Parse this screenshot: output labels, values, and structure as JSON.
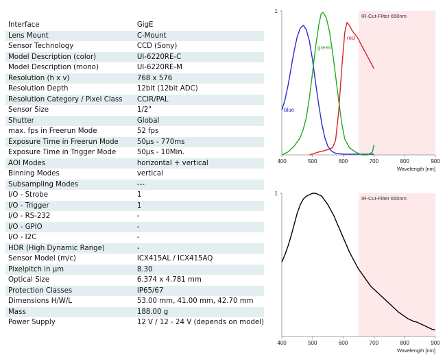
{
  "spec_table": {
    "rows": [
      {
        "label": "Interface",
        "value": "GigE"
      },
      {
        "label": "Lens Mount",
        "value": "C-Mount"
      },
      {
        "label": "Sensor Technology",
        "value": "CCD (Sony)"
      },
      {
        "label": "Model Description (color)",
        "value": "UI-6220RE-C"
      },
      {
        "label": "Model Description (mono)",
        "value": "UI-6220RE-M"
      },
      {
        "label": "Resolution (h x v)",
        "value": "768 x 576"
      },
      {
        "label": "Resolution Depth",
        "value": "12bit (12bit ADC)"
      },
      {
        "label": "Resolution Category / Pixel Class",
        "value": "CCIR/PAL"
      },
      {
        "label": "Sensor Size",
        "value": "1/2\""
      },
      {
        "label": "Shutter",
        "value": "Global"
      },
      {
        "label": "max. fps in Freerun Mode",
        "value": "52 fps"
      },
      {
        "label": "Exposure Time in Freerun Mode",
        "value": "50µs - 770ms"
      },
      {
        "label": "Exposure Time in Trigger Mode",
        "value": "50µs - 10Min."
      },
      {
        "label": "AOI Modes",
        "value": "horizontal + vertical"
      },
      {
        "label": "Binning Modes",
        "value": "vertical"
      },
      {
        "label": "Subsampling Modes",
        "value": "---"
      },
      {
        "label": "I/O - Strobe",
        "value": "1"
      },
      {
        "label": "I/O - Trigger",
        "value": "1"
      },
      {
        "label": "I/O - RS-232",
        "value": "-"
      },
      {
        "label": "I/O - GPIO",
        "value": "-"
      },
      {
        "label": "I/O - I2C",
        "value": "-"
      },
      {
        "label": "HDR (High Dynamic Range)",
        "value": "-"
      },
      {
        "label": "Sensor Model (m/c)",
        "value": "ICX415AL / ICX415AQ"
      },
      {
        "label": "Pixelpitch in µm",
        "value": "8.30"
      },
      {
        "label": "Optical Size",
        "value": "6.374 x 4.781 mm"
      },
      {
        "label": "Protection Classes",
        "value": "IP65/67"
      },
      {
        "label": "Dimensions H/W/L",
        "value": "53.00 mm, 41.00 mm, 42.70 mm"
      },
      {
        "label": "Mass",
        "value": "188.00 g"
      },
      {
        "label": "Power Supply",
        "value": "12 V / 12 - 24 V (depends on model)"
      }
    ]
  },
  "chart_data": [
    {
      "type": "line",
      "xlabel": "Wavelength [nm]",
      "x_ticks": [
        "400",
        "500",
        "600",
        "700",
        "800",
        "900"
      ],
      "y_ticks": [
        "1"
      ],
      "xlim": [
        400,
        900
      ],
      "ylim": [
        0,
        1
      ],
      "shaded_region": {
        "from": 650,
        "to": 900,
        "label": "IR-Cut-Filter 650nm",
        "color": "#fde8ea"
      },
      "series": [
        {
          "name": "blue",
          "color": "#2b2bd0",
          "points": [
            [
              400,
              0.31
            ],
            [
              410,
              0.38
            ],
            [
              420,
              0.48
            ],
            [
              430,
              0.6
            ],
            [
              440,
              0.72
            ],
            [
              450,
              0.82
            ],
            [
              460,
              0.88
            ],
            [
              470,
              0.9
            ],
            [
              480,
              0.87
            ],
            [
              490,
              0.79
            ],
            [
              500,
              0.66
            ],
            [
              510,
              0.5
            ],
            [
              520,
              0.35
            ],
            [
              530,
              0.22
            ],
            [
              540,
              0.12
            ],
            [
              550,
              0.06
            ],
            [
              560,
              0.03
            ],
            [
              570,
              0.015
            ],
            [
              580,
              0.01
            ],
            [
              600,
              0.005
            ],
            [
              650,
              0.005
            ],
            [
              700,
              0.005
            ]
          ]
        },
        {
          "name": "green",
          "color": "#22aa22",
          "points": [
            [
              400,
              0.0
            ],
            [
              420,
              0.02
            ],
            [
              440,
              0.06
            ],
            [
              460,
              0.12
            ],
            [
              470,
              0.18
            ],
            [
              480,
              0.26
            ],
            [
              490,
              0.4
            ],
            [
              500,
              0.57
            ],
            [
              510,
              0.75
            ],
            [
              520,
              0.9
            ],
            [
              528,
              0.98
            ],
            [
              535,
              0.99
            ],
            [
              545,
              0.95
            ],
            [
              555,
              0.86
            ],
            [
              565,
              0.72
            ],
            [
              575,
              0.55
            ],
            [
              585,
              0.38
            ],
            [
              595,
              0.22
            ],
            [
              605,
              0.11
            ],
            [
              620,
              0.05
            ],
            [
              640,
              0.02
            ],
            [
              660,
              0.0
            ],
            [
              680,
              0.0
            ],
            [
              695,
              0.02
            ],
            [
              700,
              0.07
            ]
          ]
        },
        {
          "name": "red",
          "color": "#dd2222",
          "points": [
            [
              490,
              0.0
            ],
            [
              520,
              0.02
            ],
            [
              540,
              0.03
            ],
            [
              555,
              0.04
            ],
            [
              565,
              0.05
            ],
            [
              575,
              0.1
            ],
            [
              585,
              0.3
            ],
            [
              595,
              0.6
            ],
            [
              605,
              0.85
            ],
            [
              612,
              0.92
            ],
            [
              620,
              0.9
            ],
            [
              630,
              0.86
            ],
            [
              645,
              0.82
            ],
            [
              660,
              0.76
            ],
            [
              675,
              0.7
            ],
            [
              690,
              0.64
            ],
            [
              700,
              0.6
            ]
          ]
        }
      ]
    },
    {
      "type": "line",
      "xlabel": "Wavelength [nm]",
      "x_ticks": [
        "400",
        "500",
        "600",
        "700",
        "800",
        "900"
      ],
      "y_ticks": [
        "1"
      ],
      "xlim": [
        400,
        900
      ],
      "ylim": [
        0,
        1
      ],
      "shaded_region": {
        "from": 650,
        "to": 900,
        "label": "IR-Cut-Filter 650nm",
        "color": "#fde8ea"
      },
      "series": [
        {
          "color": "#000000",
          "points": [
            [
              400,
              0.52
            ],
            [
              410,
              0.57
            ],
            [
              420,
              0.63
            ],
            [
              430,
              0.7
            ],
            [
              440,
              0.78
            ],
            [
              450,
              0.86
            ],
            [
              460,
              0.92
            ],
            [
              470,
              0.96
            ],
            [
              480,
              0.98
            ],
            [
              490,
              0.99
            ],
            [
              500,
              1.0
            ],
            [
              510,
              1.0
            ],
            [
              520,
              0.99
            ],
            [
              530,
              0.98
            ],
            [
              540,
              0.95
            ],
            [
              550,
              0.92
            ],
            [
              560,
              0.88
            ],
            [
              570,
              0.84
            ],
            [
              580,
              0.79
            ],
            [
              590,
              0.74
            ],
            [
              600,
              0.69
            ],
            [
              610,
              0.64
            ],
            [
              620,
              0.59
            ],
            [
              630,
              0.55
            ],
            [
              640,
              0.51
            ],
            [
              650,
              0.47
            ],
            [
              660,
              0.44
            ],
            [
              670,
              0.41
            ],
            [
              680,
              0.38
            ],
            [
              690,
              0.35
            ],
            [
              700,
              0.33
            ],
            [
              710,
              0.31
            ],
            [
              720,
              0.29
            ],
            [
              730,
              0.27
            ],
            [
              740,
              0.25
            ],
            [
              750,
              0.23
            ],
            [
              760,
              0.21
            ],
            [
              770,
              0.19
            ],
            [
              780,
              0.17
            ],
            [
              790,
              0.155
            ],
            [
              800,
              0.14
            ],
            [
              810,
              0.125
            ],
            [
              820,
              0.115
            ],
            [
              830,
              0.105
            ],
            [
              840,
              0.1
            ],
            [
              850,
              0.09
            ],
            [
              860,
              0.08
            ],
            [
              870,
              0.07
            ],
            [
              880,
              0.06
            ],
            [
              890,
              0.05
            ],
            [
              900,
              0.045
            ]
          ]
        }
      ]
    }
  ]
}
